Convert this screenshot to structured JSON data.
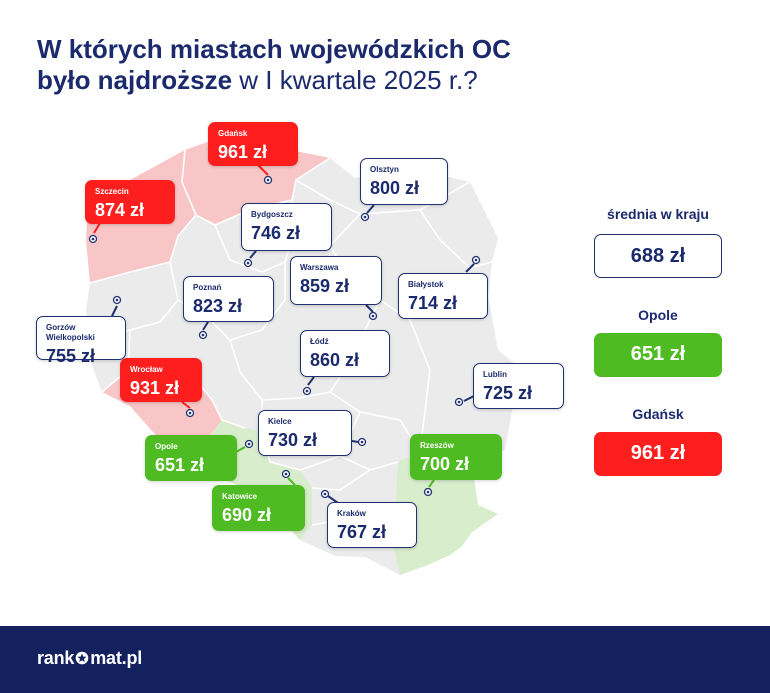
{
  "header": {
    "title_bold_line1": "W których miastach wojewódzkich OC",
    "title_bold_line2": "było najdroższe",
    "title_normal_line2": " w I kwartale 2025 r.?"
  },
  "cities": [
    {
      "id": "gdansk",
      "city": "Gdańsk",
      "price": "961 zł",
      "value": 961,
      "category": "max"
    },
    {
      "id": "olsztyn",
      "city": "Olsztyn",
      "price": "800 zł",
      "value": 800,
      "category": "normal"
    },
    {
      "id": "szczecin",
      "city": "Szczecin",
      "price": "874 zł",
      "value": 874,
      "category": "high"
    },
    {
      "id": "bydgoszcz",
      "city": "Bydgoszcz",
      "price": "746 zł",
      "value": 746,
      "category": "normal"
    },
    {
      "id": "warszawa",
      "city": "Warszawa",
      "price": "859 zł",
      "value": 859,
      "category": "normal"
    },
    {
      "id": "bialystok",
      "city": "Białystok",
      "price": "714 zł",
      "value": 714,
      "category": "normal"
    },
    {
      "id": "poznan",
      "city": "Poznań",
      "price": "823 zł",
      "value": 823,
      "category": "normal"
    },
    {
      "id": "gorzow",
      "city": "Gorzów Wielkopolski",
      "price": "755 zł",
      "value": 755,
      "category": "normal"
    },
    {
      "id": "lodz",
      "city": "Łódź",
      "price": "860 zł",
      "value": 860,
      "category": "normal"
    },
    {
      "id": "wroclaw",
      "city": "Wrocław",
      "price": "931 zł",
      "value": 931,
      "category": "high"
    },
    {
      "id": "lublin",
      "city": "Lublin",
      "price": "725 zł",
      "value": 725,
      "category": "normal"
    },
    {
      "id": "kielce",
      "city": "Kielce",
      "price": "730 zł",
      "value": 730,
      "category": "normal"
    },
    {
      "id": "opole",
      "city": "Opole",
      "price": "651 zł",
      "value": 651,
      "category": "low"
    },
    {
      "id": "rzeszow",
      "city": "Rzeszów",
      "price": "700 zł",
      "value": 700,
      "category": "low"
    },
    {
      "id": "katowice",
      "city": "Katowice",
      "price": "690 zł",
      "value": 690,
      "category": "low"
    },
    {
      "id": "krakow",
      "city": "Kraków",
      "price": "767 zł",
      "value": 767,
      "category": "normal"
    }
  ],
  "summary": {
    "average_title": "średnia w kraju",
    "average_value": "688 zł",
    "min_title": "Opole",
    "min_value": "651 zł",
    "max_title": "Gdańsk",
    "max_value": "961 zł"
  },
  "colors": {
    "navy": "#1a2a6c",
    "red": "#ff1e1e",
    "green": "#4fbb23",
    "map_gray": "#ebebeb",
    "map_red": "#f8c6c6",
    "map_green": "#d8edcc",
    "footer": "#14215f"
  },
  "footer": {
    "brand_left": "rank",
    "brand_right": "mat.pl",
    "brand_icon": "star-icon"
  }
}
